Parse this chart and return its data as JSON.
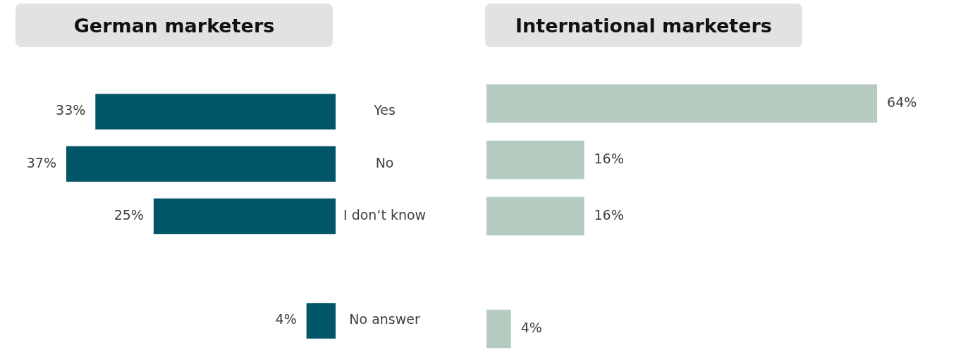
{
  "chart_data": [
    {
      "type": "bar",
      "title": "German marketers",
      "orientation": "horizontal",
      "categories": [
        "Yes",
        "No",
        "I don‘t know",
        null,
        "No answer"
      ],
      "tick_labels": "y",
      "series": [
        {
          "color": "#005566",
          "values": [
            33,
            37,
            25,
            null,
            4
          ],
          "value_labels": [
            "33%",
            "37%",
            "25%",
            null,
            "4%"
          ]
        }
      ]
    },
    {
      "type": "bar",
      "title": "International marketers",
      "orientation": "horizontal",
      "categories": [
        null,
        null,
        null,
        null,
        null
      ],
      "tick_labels": false,
      "series": [
        {
          "color": "#b5cbc0",
          "values": [
            64,
            16,
            16,
            null,
            4
          ],
          "value_labels": [
            "64%",
            "16%",
            "16%",
            null,
            "4%"
          ]
        }
      ]
    }
  ]
}
